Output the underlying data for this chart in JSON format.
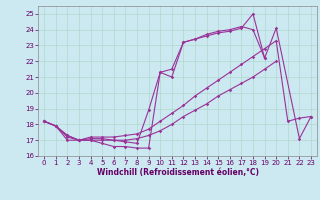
{
  "xlabel": "Windchill (Refroidissement éolien,°C)",
  "background_color": "#cce8f0",
  "grid_color": "#b0d8cc",
  "line_color": "#993399",
  "xlim": [
    -0.5,
    23.5
  ],
  "ylim": [
    16,
    25.5
  ],
  "yticks": [
    16,
    17,
    18,
    19,
    20,
    21,
    22,
    23,
    24,
    25
  ],
  "xticks": [
    0,
    1,
    2,
    3,
    4,
    5,
    6,
    7,
    8,
    9,
    10,
    11,
    12,
    13,
    14,
    15,
    16,
    17,
    18,
    19,
    20,
    21,
    22,
    23
  ],
  "line1_x": [
    0,
    1,
    2,
    3,
    4,
    5,
    6,
    7,
    8,
    9,
    10,
    11,
    12,
    13,
    14,
    15,
    16,
    17,
    18,
    19,
    20,
    22,
    23
  ],
  "line1_y": [
    18.2,
    17.9,
    17.0,
    17.0,
    17.0,
    16.8,
    16.6,
    16.6,
    16.5,
    16.5,
    21.3,
    21.0,
    23.2,
    23.4,
    23.6,
    23.8,
    23.9,
    24.1,
    25.0,
    22.2,
    24.1,
    17.1,
    18.5
  ],
  "line2_x": [
    0,
    1,
    2,
    3,
    4,
    5,
    6,
    7,
    8,
    9,
    10,
    11,
    12,
    13,
    14,
    15,
    16,
    17,
    18,
    19
  ],
  "line2_y": [
    18.2,
    17.9,
    17.3,
    17.0,
    17.1,
    17.1,
    17.0,
    16.9,
    16.8,
    18.9,
    21.3,
    21.5,
    23.2,
    23.4,
    23.7,
    23.9,
    24.0,
    24.2,
    24.0,
    22.2
  ],
  "line3_x": [
    0,
    1,
    2,
    3,
    4,
    5,
    6,
    7,
    8,
    9,
    10,
    11,
    12,
    13,
    14,
    15,
    16,
    17,
    18,
    19,
    20,
    21,
    22,
    23
  ],
  "line3_y": [
    18.2,
    17.9,
    17.3,
    17.0,
    17.2,
    17.2,
    17.2,
    17.3,
    17.4,
    17.7,
    18.2,
    18.7,
    19.2,
    19.8,
    20.3,
    20.8,
    21.3,
    21.8,
    22.3,
    22.8,
    23.3,
    18.2,
    18.4,
    18.5
  ],
  "line4_x": [
    0,
    1,
    2,
    3,
    4,
    5,
    6,
    7,
    8,
    9,
    10,
    11,
    12,
    13,
    14,
    15,
    16,
    17,
    18,
    19,
    20
  ],
  "line4_y": [
    18.2,
    17.9,
    17.2,
    17.0,
    17.0,
    17.0,
    17.0,
    17.0,
    17.1,
    17.3,
    17.6,
    18.0,
    18.5,
    18.9,
    19.3,
    19.8,
    20.2,
    20.6,
    21.0,
    21.5,
    22.0
  ]
}
